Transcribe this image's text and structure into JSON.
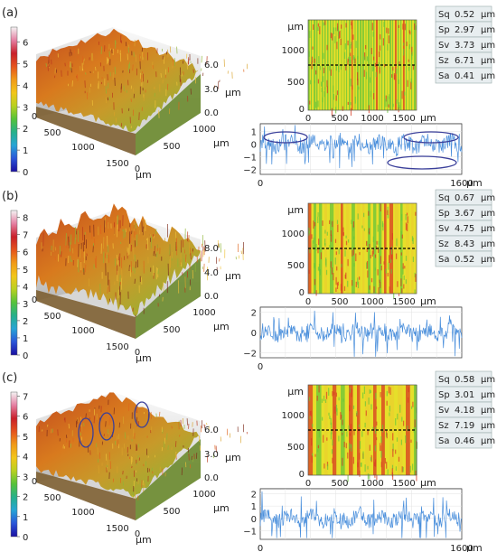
{
  "panels": [
    {
      "label": "(a)",
      "colorbar": {
        "ticks": [
          "0",
          "1",
          "2",
          "3",
          "4",
          "5",
          "6"
        ],
        "max": 6.7
      },
      "surface": {
        "x_ticks": [
          "0",
          "500",
          "1000",
          "1500"
        ],
        "y_ticks": [
          "0",
          "500",
          "1000"
        ],
        "z_ticks": [
          "6.0",
          "3.0",
          "0.0"
        ],
        "unit": "µm",
        "peak_markers": []
      },
      "map": {
        "y_ticks": [
          "0",
          "500",
          "1000"
        ],
        "x_ticks": [
          "0",
          "500",
          "1000",
          "1500"
        ],
        "unit": "µm",
        "stripe": "fine"
      },
      "params": [
        {
          "name": "Sq",
          "value": "0.52",
          "unit": "µm"
        },
        {
          "name": "Sp",
          "value": "2.97",
          "unit": "µm"
        },
        {
          "name": "Sv",
          "value": "3.73",
          "unit": "µm"
        },
        {
          "name": "Sz",
          "value": "6.71",
          "unit": "µm"
        },
        {
          "name": "Sa",
          "value": "0.41",
          "unit": "µm"
        }
      ],
      "profile": {
        "y_ticks": [
          "1",
          "0",
          "−1",
          "−2"
        ],
        "ylim": [
          -2.4,
          1.6
        ],
        "x_ticks": [
          "0",
          "1600"
        ],
        "x_unit": "µm",
        "profile_markers": 3
      }
    },
    {
      "label": "(b)",
      "colorbar": {
        "ticks": [
          "0",
          "1",
          "2",
          "3",
          "4",
          "5",
          "6",
          "7",
          "8"
        ],
        "max": 8.4
      },
      "surface": {
        "x_ticks": [
          "0",
          "500",
          "1000",
          "1500"
        ],
        "y_ticks": [
          "0",
          "500",
          "1000"
        ],
        "z_ticks": [
          "8.0",
          "4.0",
          "0.0"
        ],
        "unit": "µm",
        "peak_markers": []
      },
      "map": {
        "y_ticks": [
          "0",
          "500",
          "1000"
        ],
        "x_ticks": [
          "0",
          "500",
          "1000",
          "1500"
        ],
        "unit": "µm",
        "stripe": "medium"
      },
      "params": [
        {
          "name": "Sq",
          "value": "0.67",
          "unit": "µm"
        },
        {
          "name": "Sp",
          "value": "3.67",
          "unit": "µm"
        },
        {
          "name": "Sv",
          "value": "4.75",
          "unit": "µm"
        },
        {
          "name": "Sz",
          "value": "8.43",
          "unit": "µm"
        },
        {
          "name": "Sa",
          "value": "0.52",
          "unit": "µm"
        }
      ],
      "profile": {
        "y_ticks": [
          "2",
          "0",
          "−2"
        ],
        "ylim": [
          -2.5,
          2.5
        ],
        "x_ticks": [
          "0"
        ],
        "x_unit": "",
        "profile_markers": 0
      }
    },
    {
      "label": "(c)",
      "colorbar": {
        "ticks": [
          "0",
          "1",
          "2",
          "3",
          "4",
          "5",
          "6",
          "7"
        ],
        "max": 7.2
      },
      "surface": {
        "x_ticks": [
          "0",
          "500",
          "1000",
          "1500"
        ],
        "y_ticks": [
          "0",
          "500",
          "1000"
        ],
        "z_ticks": [
          "6.0",
          "3.0",
          "0.0"
        ],
        "unit": "µm",
        "peak_markers": 3
      },
      "map": {
        "y_ticks": [
          "0",
          "500",
          "1000"
        ],
        "x_ticks": [
          "0",
          "500",
          "1000",
          "1500"
        ],
        "unit": "µm",
        "stripe": "coarse"
      },
      "params": [
        {
          "name": "Sq",
          "value": "0.58",
          "unit": "µm"
        },
        {
          "name": "Sp",
          "value": "3.01",
          "unit": "µm"
        },
        {
          "name": "Sv",
          "value": "4.18",
          "unit": "µm"
        },
        {
          "name": "Sz",
          "value": "7.19",
          "unit": "µm"
        },
        {
          "name": "Sa",
          "value": "0.46",
          "unit": "µm"
        }
      ],
      "profile": {
        "y_ticks": [
          "2",
          "1",
          "0",
          "−1"
        ],
        "ylim": [
          -1.7,
          2.4
        ],
        "x_ticks": [
          "0",
          "1600"
        ],
        "x_unit": "µm",
        "profile_markers": 0
      }
    }
  ],
  "colors": {
    "colormap": [
      "#1a0fa0",
      "#2a55d8",
      "#27a4d6",
      "#26b08a",
      "#55c23a",
      "#b8d020",
      "#f2c619",
      "#f09a18",
      "#e5541d",
      "#c8202a",
      "#e57fa2",
      "#f4f4f4"
    ],
    "profile_line": "#4a8fdc",
    "marker_ring": "#3a3f9a",
    "param_bg": "#e8eef0",
    "map_red": "#d83a22",
    "map_yellow": "#e6df2a",
    "map_green": "#67c43a"
  }
}
